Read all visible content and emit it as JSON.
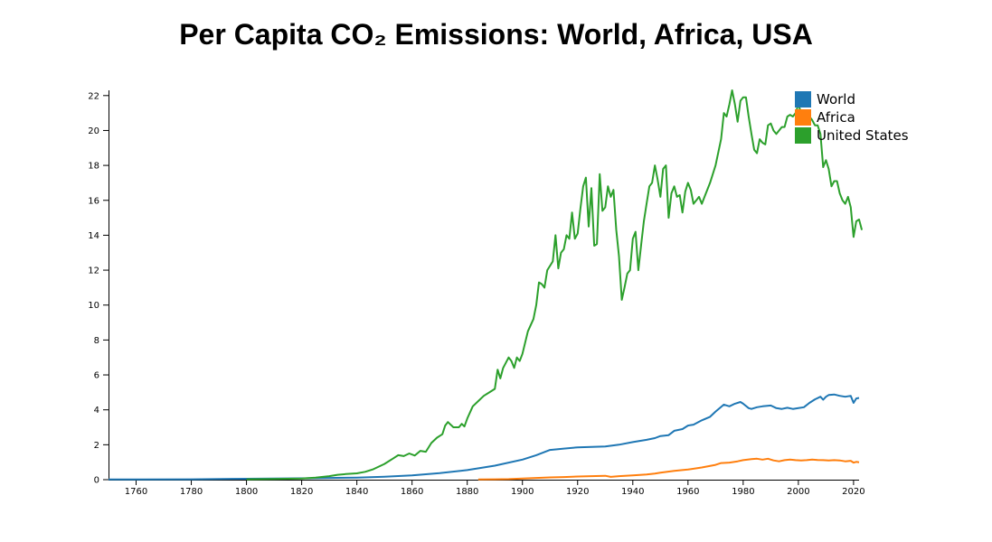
{
  "chart_data": {
    "type": "line",
    "title": "Per Capita CO₂ Emissions: World, Africa, USA",
    "xlabel": "",
    "ylabel": "",
    "xlim": [
      1750,
      2022
    ],
    "ylim": [
      0,
      22.3
    ],
    "xticks": [
      1760,
      1780,
      1800,
      1820,
      1840,
      1860,
      1880,
      1900,
      1920,
      1940,
      1960,
      1980,
      2000,
      2020
    ],
    "yticks": [
      0,
      2,
      4,
      6,
      8,
      10,
      12,
      14,
      16,
      18,
      20,
      22
    ],
    "grid": false,
    "legend_position": "top-right",
    "series": [
      {
        "name": "World",
        "color": "#1f77b4",
        "points": [
          [
            1750,
            0.01
          ],
          [
            1760,
            0.01
          ],
          [
            1780,
            0.02
          ],
          [
            1800,
            0.05
          ],
          [
            1820,
            0.08
          ],
          [
            1840,
            0.12
          ],
          [
            1850,
            0.17
          ],
          [
            1860,
            0.25
          ],
          [
            1870,
            0.38
          ],
          [
            1880,
            0.55
          ],
          [
            1890,
            0.8
          ],
          [
            1900,
            1.15
          ],
          [
            1905,
            1.4
          ],
          [
            1910,
            1.7
          ],
          [
            1915,
            1.78
          ],
          [
            1920,
            1.85
          ],
          [
            1925,
            1.88
          ],
          [
            1930,
            1.9
          ],
          [
            1935,
            2.0
          ],
          [
            1940,
            2.15
          ],
          [
            1945,
            2.28
          ],
          [
            1948,
            2.38
          ],
          [
            1950,
            2.5
          ],
          [
            1953,
            2.55
          ],
          [
            1955,
            2.8
          ],
          [
            1958,
            2.9
          ],
          [
            1960,
            3.1
          ],
          [
            1962,
            3.15
          ],
          [
            1965,
            3.4
          ],
          [
            1968,
            3.6
          ],
          [
            1970,
            3.9
          ],
          [
            1973,
            4.3
          ],
          [
            1975,
            4.2
          ],
          [
            1977,
            4.35
          ],
          [
            1979,
            4.45
          ],
          [
            1980,
            4.35
          ],
          [
            1982,
            4.1
          ],
          [
            1983,
            4.05
          ],
          [
            1985,
            4.15
          ],
          [
            1987,
            4.2
          ],
          [
            1990,
            4.25
          ],
          [
            1992,
            4.1
          ],
          [
            1994,
            4.05
          ],
          [
            1996,
            4.12
          ],
          [
            1998,
            4.05
          ],
          [
            2000,
            4.1
          ],
          [
            2002,
            4.15
          ],
          [
            2004,
            4.4
          ],
          [
            2006,
            4.6
          ],
          [
            2008,
            4.75
          ],
          [
            2009,
            4.58
          ],
          [
            2010,
            4.75
          ],
          [
            2011,
            4.85
          ],
          [
            2013,
            4.88
          ],
          [
            2015,
            4.8
          ],
          [
            2017,
            4.75
          ],
          [
            2019,
            4.8
          ],
          [
            2020,
            4.4
          ],
          [
            2021,
            4.65
          ],
          [
            2022,
            4.68
          ]
        ]
      },
      {
        "name": "Africa",
        "color": "#ff7f0e",
        "points": [
          [
            1884,
            0.01
          ],
          [
            1890,
            0.02
          ],
          [
            1895,
            0.03
          ],
          [
            1900,
            0.06
          ],
          [
            1905,
            0.1
          ],
          [
            1910,
            0.13
          ],
          [
            1915,
            0.15
          ],
          [
            1920,
            0.18
          ],
          [
            1925,
            0.2
          ],
          [
            1930,
            0.22
          ],
          [
            1932,
            0.16
          ],
          [
            1935,
            0.2
          ],
          [
            1940,
            0.25
          ],
          [
            1945,
            0.3
          ],
          [
            1948,
            0.35
          ],
          [
            1950,
            0.4
          ],
          [
            1955,
            0.5
          ],
          [
            1960,
            0.58
          ],
          [
            1965,
            0.7
          ],
          [
            1970,
            0.85
          ],
          [
            1972,
            0.95
          ],
          [
            1975,
            0.98
          ],
          [
            1978,
            1.05
          ],
          [
            1980,
            1.12
          ],
          [
            1983,
            1.18
          ],
          [
            1985,
            1.2
          ],
          [
            1987,
            1.15
          ],
          [
            1989,
            1.2
          ],
          [
            1991,
            1.1
          ],
          [
            1993,
            1.05
          ],
          [
            1995,
            1.12
          ],
          [
            1997,
            1.15
          ],
          [
            1999,
            1.12
          ],
          [
            2001,
            1.1
          ],
          [
            2003,
            1.12
          ],
          [
            2005,
            1.15
          ],
          [
            2007,
            1.13
          ],
          [
            2009,
            1.12
          ],
          [
            2011,
            1.1
          ],
          [
            2013,
            1.12
          ],
          [
            2015,
            1.1
          ],
          [
            2017,
            1.05
          ],
          [
            2019,
            1.08
          ],
          [
            2020,
            0.98
          ],
          [
            2021,
            1.02
          ],
          [
            2022,
            1.0
          ]
        ]
      },
      {
        "name": "United States",
        "color": "#2ca02c",
        "points": [
          [
            1800,
            0.02
          ],
          [
            1810,
            0.04
          ],
          [
            1820,
            0.06
          ],
          [
            1825,
            0.12
          ],
          [
            1830,
            0.2
          ],
          [
            1833,
            0.28
          ],
          [
            1836,
            0.32
          ],
          [
            1840,
            0.36
          ],
          [
            1843,
            0.45
          ],
          [
            1846,
            0.6
          ],
          [
            1850,
            0.9
          ],
          [
            1853,
            1.2
          ],
          [
            1855,
            1.4
          ],
          [
            1857,
            1.35
          ],
          [
            1859,
            1.5
          ],
          [
            1861,
            1.38
          ],
          [
            1863,
            1.65
          ],
          [
            1865,
            1.6
          ],
          [
            1867,
            2.1
          ],
          [
            1869,
            2.4
          ],
          [
            1871,
            2.6
          ],
          [
            1872,
            3.1
          ],
          [
            1873,
            3.3
          ],
          [
            1875,
            3.0
          ],
          [
            1877,
            3.0
          ],
          [
            1878,
            3.2
          ],
          [
            1879,
            3.05
          ],
          [
            1880,
            3.5
          ],
          [
            1882,
            4.2
          ],
          [
            1884,
            4.5
          ],
          [
            1886,
            4.8
          ],
          [
            1888,
            5.0
          ],
          [
            1890,
            5.2
          ],
          [
            1891,
            6.3
          ],
          [
            1892,
            5.8
          ],
          [
            1893,
            6.4
          ],
          [
            1895,
            7.0
          ],
          [
            1896,
            6.8
          ],
          [
            1897,
            6.4
          ],
          [
            1898,
            7.0
          ],
          [
            1899,
            6.8
          ],
          [
            1900,
            7.2
          ],
          [
            1902,
            8.5
          ],
          [
            1904,
            9.2
          ],
          [
            1905,
            10.0
          ],
          [
            1906,
            11.3
          ],
          [
            1907,
            11.2
          ],
          [
            1908,
            11.0
          ],
          [
            1909,
            12.0
          ],
          [
            1911,
            12.5
          ],
          [
            1912,
            14.0
          ],
          [
            1913,
            12.1
          ],
          [
            1914,
            13.0
          ],
          [
            1915,
            13.2
          ],
          [
            1916,
            14.0
          ],
          [
            1917,
            13.8
          ],
          [
            1918,
            15.3
          ],
          [
            1919,
            13.8
          ],
          [
            1920,
            14.1
          ],
          [
            1921,
            15.5
          ],
          [
            1922,
            16.8
          ],
          [
            1923,
            17.3
          ],
          [
            1924,
            14.5
          ],
          [
            1925,
            16.7
          ],
          [
            1926,
            13.4
          ],
          [
            1927,
            13.5
          ],
          [
            1928,
            17.5
          ],
          [
            1929,
            15.4
          ],
          [
            1930,
            15.6
          ],
          [
            1931,
            16.8
          ],
          [
            1932,
            16.2
          ],
          [
            1933,
            16.6
          ],
          [
            1934,
            14.3
          ],
          [
            1935,
            12.8
          ],
          [
            1936,
            10.3
          ],
          [
            1937,
            11.0
          ],
          [
            1938,
            11.8
          ],
          [
            1939,
            12.0
          ],
          [
            1940,
            13.8
          ],
          [
            1941,
            14.2
          ],
          [
            1942,
            12.0
          ],
          [
            1943,
            13.4
          ],
          [
            1944,
            14.8
          ],
          [
            1945,
            15.8
          ],
          [
            1946,
            16.8
          ],
          [
            1947,
            17.0
          ],
          [
            1948,
            18.0
          ],
          [
            1949,
            17.2
          ],
          [
            1950,
            16.2
          ],
          [
            1951,
            17.8
          ],
          [
            1952,
            18.0
          ],
          [
            1953,
            15.0
          ],
          [
            1954,
            16.4
          ],
          [
            1955,
            16.8
          ],
          [
            1956,
            16.2
          ],
          [
            1957,
            16.3
          ],
          [
            1958,
            15.3
          ],
          [
            1959,
            16.5
          ],
          [
            1960,
            17.0
          ],
          [
            1961,
            16.6
          ],
          [
            1962,
            15.8
          ],
          [
            1963,
            16.0
          ],
          [
            1964,
            16.2
          ],
          [
            1965,
            15.8
          ],
          [
            1966,
            16.2
          ],
          [
            1968,
            17.0
          ],
          [
            1970,
            18.0
          ],
          [
            1972,
            19.5
          ],
          [
            1973,
            21.0
          ],
          [
            1974,
            20.8
          ],
          [
            1975,
            21.5
          ],
          [
            1976,
            22.3
          ],
          [
            1977,
            21.5
          ],
          [
            1978,
            20.5
          ],
          [
            1979,
            21.7
          ],
          [
            1980,
            21.9
          ],
          [
            1981,
            21.9
          ],
          [
            1982,
            20.8
          ],
          [
            1983,
            19.8
          ],
          [
            1984,
            18.9
          ],
          [
            1985,
            18.7
          ],
          [
            1986,
            19.5
          ],
          [
            1987,
            19.3
          ],
          [
            1988,
            19.2
          ],
          [
            1989,
            20.3
          ],
          [
            1990,
            20.4
          ],
          [
            1991,
            20.0
          ],
          [
            1992,
            19.8
          ],
          [
            1993,
            20.0
          ],
          [
            1994,
            20.2
          ],
          [
            1995,
            20.2
          ],
          [
            1996,
            20.8
          ],
          [
            1997,
            20.9
          ],
          [
            1998,
            20.8
          ],
          [
            1999,
            21.0
          ],
          [
            2000,
            21.5
          ],
          [
            2001,
            21.0
          ],
          [
            2002,
            20.9
          ],
          [
            2003,
            20.8
          ],
          [
            2004,
            20.8
          ],
          [
            2005,
            20.6
          ],
          [
            2006,
            20.3
          ],
          [
            2007,
            20.3
          ],
          [
            2008,
            19.8
          ],
          [
            2009,
            17.9
          ],
          [
            2010,
            18.3
          ],
          [
            2011,
            17.8
          ],
          [
            2012,
            16.8
          ],
          [
            2013,
            17.1
          ],
          [
            2014,
            17.1
          ],
          [
            2015,
            16.4
          ],
          [
            2016,
            16.0
          ],
          [
            2017,
            15.8
          ],
          [
            2018,
            16.2
          ],
          [
            2019,
            15.6
          ],
          [
            2020,
            13.9
          ],
          [
            2021,
            14.8
          ],
          [
            2022,
            14.9
          ],
          [
            2023,
            14.3
          ]
        ]
      }
    ]
  }
}
